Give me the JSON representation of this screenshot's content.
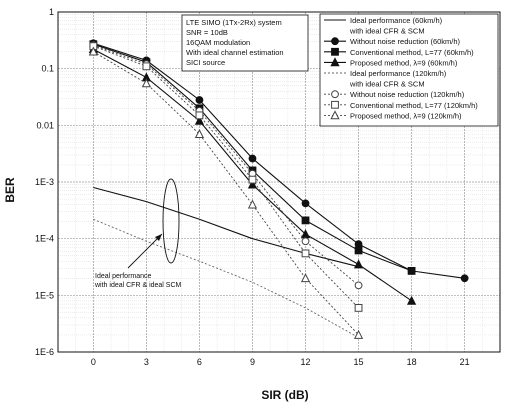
{
  "chart_data": {
    "type": "line",
    "xlabel": "SIR (dB)",
    "ylabel": "BER",
    "x_ticks": [
      0,
      3,
      6,
      9,
      12,
      15,
      18,
      21
    ],
    "y_ticks": [
      {
        "value": 1,
        "label": "1"
      },
      {
        "value": 0.1,
        "label": "0.1"
      },
      {
        "value": 0.01,
        "label": "0.01"
      },
      {
        "value": 0.001,
        "label": "1E-3"
      },
      {
        "value": 0.0001,
        "label": "1E-4"
      },
      {
        "value": 1e-05,
        "label": "1E-5"
      },
      {
        "value": 1e-06,
        "label": "1E-6"
      }
    ],
    "xlim": [
      -2,
      23
    ],
    "ylim": [
      1e-06,
      1
    ],
    "y_scale": "log",
    "grid": true,
    "info_box": [
      "LTE SIMO (1Tx-2Rx) system",
      "SNR = 10dB",
      "16QAM modulation",
      "With ideal channel estimation",
      "SICI source"
    ],
    "legend_placement": "top-right",
    "legend": [
      {
        "label": "Ideal performance (60km/h)",
        "series": 0
      },
      {
        "label": "with ideal CFR & SCM",
        "series": null
      },
      {
        "label": "Without noise reduction (60km/h)",
        "series": 1
      },
      {
        "label": "Conventional method, L=77 (60km/h)",
        "series": 2
      },
      {
        "label": "Proposed method, λ=9 (60km/h)",
        "series": 3
      },
      {
        "label": "Ideal performance (120km/h)",
        "series": 4
      },
      {
        "label": "with ideal CFR & SCM",
        "series": null
      },
      {
        "label": "Without noise reduction (120km/h)",
        "series": 5
      },
      {
        "label": "Conventional method, L=77 (120km/h)",
        "series": 6
      },
      {
        "label": "Proposed method, λ=9 (120km/h)",
        "series": 7
      }
    ],
    "series": [
      {
        "x": [
          0,
          3,
          6,
          9,
          12,
          15
        ],
        "y": [
          0.0008,
          0.00045,
          0.00022,
          0.0001,
          5.5e-05,
          3.2e-05
        ],
        "line": "solid",
        "marker": "none",
        "color": "#111111"
      },
      {
        "x": [
          0,
          3,
          6,
          9,
          12,
          15,
          18,
          21
        ],
        "y": [
          0.28,
          0.14,
          0.028,
          0.0026,
          0.00042,
          8e-05,
          2.7e-05,
          2e-05
        ],
        "line": "solid",
        "marker": "circle-filled",
        "color": "#111111"
      },
      {
        "x": [
          0,
          3,
          6,
          9,
          12,
          15,
          18
        ],
        "y": [
          0.27,
          0.13,
          0.02,
          0.0016,
          0.00021,
          6.2e-05,
          2.7e-05
        ],
        "line": "solid",
        "marker": "square-filled",
        "color": "#111111"
      },
      {
        "x": [
          0,
          3,
          6,
          9,
          12,
          15,
          18
        ],
        "y": [
          0.22,
          0.07,
          0.012,
          0.0009,
          0.00012,
          3.5e-05,
          8e-06
        ],
        "line": "solid",
        "marker": "triangle-filled",
        "color": "#111111"
      },
      {
        "x": [
          0,
          3,
          6,
          9,
          12,
          15
        ],
        "y": [
          0.00022,
          9e-05,
          4e-05,
          1.7e-05,
          6e-06,
          1.8e-06
        ],
        "line": "dotted",
        "marker": "none",
        "color": "#666666"
      },
      {
        "x": [
          0,
          3,
          6,
          9,
          12,
          15
        ],
        "y": [
          0.26,
          0.12,
          0.018,
          0.0014,
          9e-05,
          1.5e-05
        ],
        "line": "dotted",
        "marker": "circle-open",
        "color": "#444444"
      },
      {
        "x": [
          0,
          3,
          6,
          9,
          12,
          15
        ],
        "y": [
          0.25,
          0.11,
          0.015,
          0.0011,
          5.5e-05,
          6e-06
        ],
        "line": "dotted",
        "marker": "square-open",
        "color": "#444444"
      },
      {
        "x": [
          0,
          3,
          6,
          9,
          12,
          15
        ],
        "y": [
          0.2,
          0.055,
          0.007,
          0.0004,
          2e-05,
          2e-06
        ],
        "line": "dotted",
        "marker": "triangle-open",
        "color": "#444444"
      }
    ],
    "annotation": {
      "lines": [
        "Ideal performance",
        "with ideal CFR & ideal SCM"
      ]
    }
  }
}
